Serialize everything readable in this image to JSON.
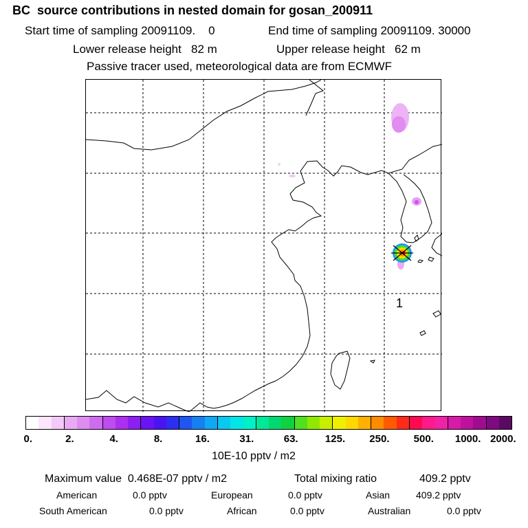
{
  "header": {
    "title": "BC  source contributions in nested domain for gosan_200911",
    "start_label": "Start time of sampling 20091109.    0",
    "end_label": "End time of sampling 20091109. 30000",
    "lower_label": "Lower release height   82 m",
    "upper_label": "Upper release height   62 m",
    "note": "Passive tracer used, meteorological data are from ECMWF"
  },
  "map": {
    "station_label": "1",
    "colors": {
      "land_line": "#000000",
      "grid": "#000000",
      "plume_light": "#e9a6f2",
      "plume_mid": "#cc55ee"
    }
  },
  "colorbar": {
    "colors": [
      "#ffffff",
      "#fbe6fb",
      "#f4c8f7",
      "#eaaaf3",
      "#de8cf0",
      "#cf6cee",
      "#bf4cef",
      "#ad2ff0",
      "#8e1ff2",
      "#6a14f3",
      "#4914f2",
      "#2e2ef0",
      "#1f55f0",
      "#1680f0",
      "#10a8f2",
      "#0ac8f0",
      "#00e6e6",
      "#00f0c8",
      "#00e89a",
      "#00d870",
      "#10d240",
      "#50e020",
      "#90e800",
      "#c8ee00",
      "#eef000",
      "#ffd800",
      "#ffb000",
      "#ff8c00",
      "#ff5a00",
      "#ff2a1a",
      "#ff0a50",
      "#ff1a8c",
      "#f022a6",
      "#d81aa8",
      "#c010a0",
      "#a00c90",
      "#800a80",
      "#5a0a60"
    ],
    "ticks": [
      "0.",
      "2.",
      "4.",
      "8.",
      "16.",
      "31.",
      "63.",
      "125.",
      "250.",
      "500.",
      "1000.",
      "2000."
    ],
    "units": "10E-10 pptv / m2"
  },
  "stats": {
    "max_label": "Maximum value  0.468E-07 pptv / m2",
    "total_label": "Total mixing ratio",
    "total_value": "409.2 pptv",
    "regions": [
      {
        "name": "American",
        "value": "0.0 pptv"
      },
      {
        "name": "European",
        "value": "0.0 pptv"
      },
      {
        "name": "Asian",
        "value": "409.2 pptv"
      },
      {
        "name": "South American",
        "value": "0.0 pptv"
      },
      {
        "name": "African",
        "value": "0.0 pptv"
      },
      {
        "name": "Australian",
        "value": "0.0 pptv"
      }
    ]
  }
}
